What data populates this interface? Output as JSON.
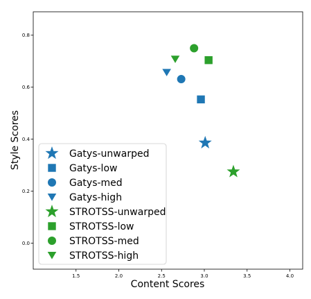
{
  "chart_data": {
    "type": "scatter",
    "title": "",
    "xlabel": "Content Scores",
    "ylabel": "Style Scores",
    "xlim": [
      1.0,
      4.15
    ],
    "ylim": [
      -0.1,
      0.89
    ],
    "x_ticks": [
      1.5,
      2.0,
      2.5,
      3.0,
      3.5,
      4.0
    ],
    "x_tick_labels": [
      "1.5",
      "2.0",
      "2.5",
      "3.0",
      "3.5",
      "4.0"
    ],
    "y_ticks": [
      0.0,
      0.2,
      0.4,
      0.6,
      0.8
    ],
    "y_tick_labels": [
      "0.0",
      "0.2",
      "0.4",
      "0.6",
      "0.8"
    ],
    "grid": false,
    "legend_position": "lower-left",
    "series": [
      {
        "name": "Gatys-unwarped",
        "color": "#1f77b4",
        "marker": "star",
        "points": [
          {
            "x": 3.01,
            "y": 0.386
          }
        ]
      },
      {
        "name": "Gatys-low",
        "color": "#1f77b4",
        "marker": "square",
        "points": [
          {
            "x": 2.96,
            "y": 0.553
          }
        ]
      },
      {
        "name": "Gatys-med",
        "color": "#1f77b4",
        "marker": "circle",
        "points": [
          {
            "x": 2.73,
            "y": 0.631
          }
        ]
      },
      {
        "name": "Gatys-high",
        "color": "#1f77b4",
        "marker": "triangle-down",
        "points": [
          {
            "x": 2.56,
            "y": 0.657
          }
        ]
      },
      {
        "name": "STROTSS-unwarped",
        "color": "#2ca02c",
        "marker": "star",
        "points": [
          {
            "x": 3.34,
            "y": 0.275
          }
        ]
      },
      {
        "name": "STROTSS-low",
        "color": "#2ca02c",
        "marker": "square",
        "points": [
          {
            "x": 3.05,
            "y": 0.704
          }
        ]
      },
      {
        "name": "STROTSS-med",
        "color": "#2ca02c",
        "marker": "circle",
        "points": [
          {
            "x": 2.88,
            "y": 0.75
          }
        ]
      },
      {
        "name": "STROTSS-high",
        "color": "#2ca02c",
        "marker": "triangle-down",
        "points": [
          {
            "x": 2.66,
            "y": 0.708
          }
        ]
      }
    ]
  }
}
